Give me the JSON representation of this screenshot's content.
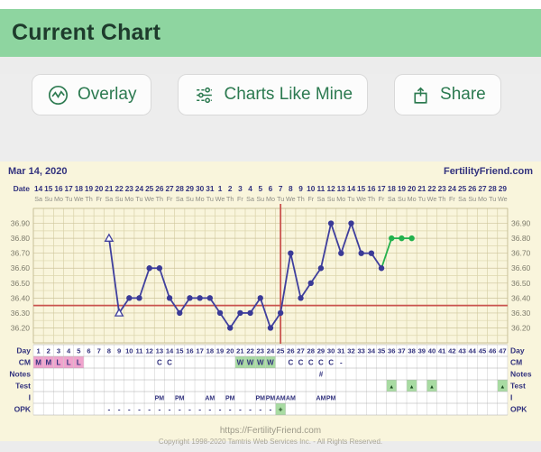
{
  "app": {
    "title": "Current Chart"
  },
  "toolbar": {
    "overlay_label": "Overlay",
    "charts_like_mine_label": "Charts Like Mine",
    "share_label": "Share"
  },
  "chart_header": {
    "start_date": "Mar 14, 2020",
    "brand": "FertilityFriend.com"
  },
  "footer": {
    "url": "https://FertilityFriend.com",
    "copyright": "Copyright 1998-2020 Tamtris Web Services Inc. - All Rights Reserved."
  },
  "colors": {
    "header_green": "#8ed5a0",
    "button_text_green": "#2c7a50",
    "cream": "#f9f5dc",
    "navy": "#32327e",
    "purple_line": "#3f3f9e",
    "green_line": "#23b14d",
    "red_line": "#c9534e",
    "pink_cell": "#f0a3cd",
    "green_cell": "#a8dba2"
  },
  "chart_data": {
    "type": "line",
    "title": "Basal body temperature chart starting Mar 14, 2020",
    "x_axis_label": "Date",
    "dates": [
      "14",
      "15",
      "16",
      "17",
      "18",
      "19",
      "20",
      "21",
      "22",
      "23",
      "24",
      "25",
      "26",
      "27",
      "28",
      "29",
      "30",
      "31",
      "1",
      "2",
      "3",
      "4",
      "5",
      "6",
      "7",
      "8",
      "9",
      "10",
      "11",
      "12",
      "13",
      "14",
      "15",
      "16",
      "17",
      "18",
      "19",
      "20",
      "21",
      "22",
      "23",
      "24",
      "25",
      "26",
      "27",
      "28",
      "29"
    ],
    "dows": [
      "Sa",
      "Su",
      "Mo",
      "Tu",
      "We",
      "Th",
      "Fr",
      "Sa",
      "Su",
      "Mo",
      "Tu",
      "We",
      "Th",
      "Fr",
      "Sa",
      "Su",
      "Mo",
      "Tu",
      "We",
      "Th",
      "Fr",
      "Sa",
      "Su",
      "Mo",
      "Tu",
      "We",
      "Th",
      "Fr",
      "Sa",
      "Su",
      "Mo",
      "Tu",
      "We",
      "Th",
      "Fr",
      "Sa",
      "Su",
      "Mo",
      "Tu",
      "We",
      "Th",
      "Fr",
      "Sa",
      "Su",
      "Mo",
      "Tu",
      "We"
    ],
    "y_ticks": [
      "36.90",
      "36.80",
      "36.70",
      "36.60",
      "36.50",
      "36.40",
      "36.30",
      "36.20"
    ],
    "y_top": 37.0,
    "y_step": 0.05,
    "n_rows": 18,
    "coverline": 36.35,
    "ovulation_day": 25,
    "temps": [
      {
        "day": 8,
        "value": 36.8,
        "marker": "open-triangle",
        "color": "purple"
      },
      {
        "day": 9,
        "value": 36.3,
        "marker": "open-triangle",
        "color": "purple"
      },
      {
        "day": 10,
        "value": 36.4,
        "marker": "dot",
        "color": "purple"
      },
      {
        "day": 11,
        "value": 36.4,
        "marker": "dot",
        "color": "purple"
      },
      {
        "day": 12,
        "value": 36.6,
        "marker": "dot",
        "color": "purple"
      },
      {
        "day": 13,
        "value": 36.6,
        "marker": "dot",
        "color": "purple"
      },
      {
        "day": 14,
        "value": 36.4,
        "marker": "dot",
        "color": "purple"
      },
      {
        "day": 15,
        "value": 36.3,
        "marker": "dot",
        "color": "purple"
      },
      {
        "day": 16,
        "value": 36.4,
        "marker": "dot",
        "color": "purple"
      },
      {
        "day": 17,
        "value": 36.4,
        "marker": "dot",
        "color": "purple"
      },
      {
        "day": 18,
        "value": 36.4,
        "marker": "dot",
        "color": "purple"
      },
      {
        "day": 19,
        "value": 36.3,
        "marker": "dot",
        "color": "purple"
      },
      {
        "day": 20,
        "value": 36.2,
        "marker": "dot",
        "color": "purple"
      },
      {
        "day": 21,
        "value": 36.3,
        "marker": "dot",
        "color": "purple"
      },
      {
        "day": 22,
        "value": 36.3,
        "marker": "dot",
        "color": "purple"
      },
      {
        "day": 23,
        "value": 36.4,
        "marker": "dot",
        "color": "purple"
      },
      {
        "day": 24,
        "value": 36.2,
        "marker": "dot",
        "color": "purple"
      },
      {
        "day": 25,
        "value": 36.3,
        "marker": "dot",
        "color": "purple"
      },
      {
        "day": 26,
        "value": 36.7,
        "marker": "dot",
        "color": "purple"
      },
      {
        "day": 27,
        "value": 36.4,
        "marker": "dot",
        "color": "purple"
      },
      {
        "day": 28,
        "value": 36.5,
        "marker": "dot",
        "color": "purple"
      },
      {
        "day": 29,
        "value": 36.6,
        "marker": "dot",
        "color": "purple"
      },
      {
        "day": 30,
        "value": 36.9,
        "marker": "dot",
        "color": "purple"
      },
      {
        "day": 31,
        "value": 36.7,
        "marker": "dot",
        "color": "purple"
      },
      {
        "day": 32,
        "value": 36.9,
        "marker": "dot",
        "color": "purple"
      },
      {
        "day": 33,
        "value": 36.7,
        "marker": "dot",
        "color": "purple"
      },
      {
        "day": 34,
        "value": 36.7,
        "marker": "dot",
        "color": "purple"
      },
      {
        "day": 35,
        "value": 36.6,
        "marker": "dot",
        "color": "purple"
      },
      {
        "day": 36,
        "value": 36.8,
        "marker": "dot",
        "color": "green"
      },
      {
        "day": 37,
        "value": 36.8,
        "marker": "dot",
        "color": "green"
      },
      {
        "day": 38,
        "value": 36.8,
        "marker": "dot",
        "color": "green"
      }
    ],
    "row_labels": [
      "Day",
      "CM",
      "Notes",
      "Test",
      "I",
      "OPK"
    ],
    "day_numbers": [
      "1",
      "2",
      "3",
      "4",
      "5",
      "6",
      "7",
      "8",
      "9",
      "10",
      "11",
      "12",
      "13",
      "14",
      "15",
      "16",
      "17",
      "18",
      "19",
      "20",
      "21",
      "22",
      "23",
      "24",
      "25",
      "26",
      "27",
      "28",
      "29",
      "30",
      "31",
      "32",
      "33",
      "34",
      "35",
      "36",
      "37",
      "38",
      "39",
      "40",
      "41",
      "42",
      "43",
      "44",
      "45",
      "46",
      "47"
    ],
    "cm_row": [
      {
        "day": 1,
        "text": "M",
        "bg": "pink"
      },
      {
        "day": 2,
        "text": "M",
        "bg": "pink"
      },
      {
        "day": 3,
        "text": "L",
        "bg": "pink"
      },
      {
        "day": 4,
        "text": "L",
        "bg": "pink"
      },
      {
        "day": 5,
        "text": "L",
        "bg": "pink"
      },
      {
        "day": 13,
        "text": "C"
      },
      {
        "day": 14,
        "text": "C"
      },
      {
        "day": 21,
        "text": "W",
        "bg": "green"
      },
      {
        "day": 22,
        "text": "W",
        "bg": "green"
      },
      {
        "day": 23,
        "text": "W",
        "bg": "green"
      },
      {
        "day": 24,
        "text": "W",
        "bg": "green"
      },
      {
        "day": 26,
        "text": "C"
      },
      {
        "day": 27,
        "text": "C"
      },
      {
        "day": 28,
        "text": "C"
      },
      {
        "day": 29,
        "text": "C"
      },
      {
        "day": 30,
        "text": "C"
      },
      {
        "day": 31,
        "text": "-"
      }
    ],
    "notes_row": [
      {
        "day": 29,
        "text": "#"
      }
    ],
    "test_row": [
      {
        "day": 36,
        "text": "▲",
        "bg": "green"
      },
      {
        "day": 38,
        "text": "▲",
        "bg": "green"
      },
      {
        "day": 40,
        "text": "▲",
        "bg": "green"
      },
      {
        "day": 47,
        "text": "▲",
        "bg": "green"
      }
    ],
    "i_row": [
      {
        "day": 13,
        "text": "PM"
      },
      {
        "day": 15,
        "text": "PM"
      },
      {
        "day": 18,
        "text": "AM"
      },
      {
        "day": 20,
        "text": "PM"
      },
      {
        "day": 23,
        "text": "PM"
      },
      {
        "day": 24,
        "text": "PM"
      },
      {
        "day": 25,
        "text": "AM"
      },
      {
        "day": 26,
        "text": "AM"
      },
      {
        "day": 29,
        "text": "AM"
      },
      {
        "day": 30,
        "text": "PM"
      }
    ],
    "opk_row": [
      {
        "day": 8,
        "text": "-"
      },
      {
        "day": 9,
        "text": "-"
      },
      {
        "day": 10,
        "text": "-"
      },
      {
        "day": 11,
        "text": "-"
      },
      {
        "day": 12,
        "text": "-"
      },
      {
        "day": 13,
        "text": "-"
      },
      {
        "day": 14,
        "text": "-"
      },
      {
        "day": 15,
        "text": "-"
      },
      {
        "day": 16,
        "text": "-"
      },
      {
        "day": 17,
        "text": "-"
      },
      {
        "day": 18,
        "text": "-"
      },
      {
        "day": 19,
        "text": "-"
      },
      {
        "day": 20,
        "text": "-"
      },
      {
        "day": 21,
        "text": "-"
      },
      {
        "day": 22,
        "text": "-"
      },
      {
        "day": 23,
        "text": "-"
      },
      {
        "day": 24,
        "text": "-"
      },
      {
        "day": 25,
        "text": "+",
        "bg": "green"
      }
    ]
  }
}
